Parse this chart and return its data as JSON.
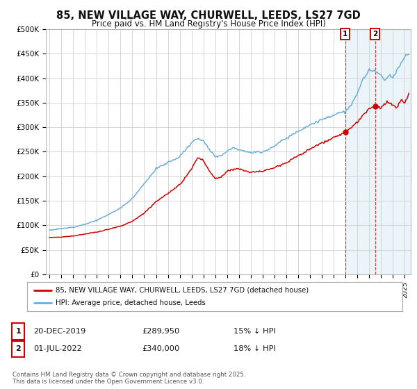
{
  "title": "85, NEW VILLAGE WAY, CHURWELL, LEEDS, LS27 7GD",
  "subtitle": "Price paid vs. HM Land Registry's House Price Index (HPI)",
  "ylabel_ticks": [
    "£0",
    "£50K",
    "£100K",
    "£150K",
    "£200K",
    "£250K",
    "£300K",
    "£350K",
    "£400K",
    "£450K",
    "£500K"
  ],
  "ytick_values": [
    0,
    50000,
    100000,
    150000,
    200000,
    250000,
    300000,
    350000,
    400000,
    450000,
    500000
  ],
  "ylim": [
    0,
    500000
  ],
  "xlim_start": 1994.7,
  "xlim_end": 2025.5,
  "hpi_color": "#6baed6",
  "price_color": "#cc0000",
  "marker1_x": 2019.97,
  "marker2_x": 2022.5,
  "legend_line1": "85, NEW VILLAGE WAY, CHURWELL, LEEDS, LS27 7GD (detached house)",
  "legend_line2": "HPI: Average price, detached house, Leeds",
  "table_row1_num": "1",
  "table_row1_date": "20-DEC-2019",
  "table_row1_price": "£289,950",
  "table_row1_hpi": "15% ↓ HPI",
  "table_row2_num": "2",
  "table_row2_date": "01-JUL-2022",
  "table_row2_price": "£340,000",
  "table_row2_hpi": "18% ↓ HPI",
  "footer": "Contains HM Land Registry data © Crown copyright and database right 2025.\nThis data is licensed under the Open Government Licence v3.0.",
  "background_color": "#ffffff",
  "grid_color": "#d0d0d0",
  "hpi_waypoints_x": [
    1995.0,
    1996.0,
    1997.0,
    1998.0,
    1999.0,
    2000.0,
    2001.0,
    2002.0,
    2003.0,
    2004.0,
    2005.0,
    2006.0,
    2007.0,
    2007.5,
    2008.0,
    2008.5,
    2009.0,
    2009.5,
    2010.0,
    2010.5,
    2011.0,
    2012.0,
    2013.0,
    2013.5,
    2014.0,
    2015.0,
    2016.0,
    2017.0,
    2018.0,
    2019.0,
    2019.5,
    2020.0,
    2020.5,
    2021.0,
    2021.5,
    2022.0,
    2022.5,
    2023.0,
    2023.3,
    2023.7,
    2024.0,
    2024.3,
    2024.7,
    2025.0,
    2025.3
  ],
  "hpi_waypoints_y": [
    90000,
    93000,
    96000,
    102000,
    110000,
    122000,
    135000,
    155000,
    185000,
    215000,
    228000,
    240000,
    268000,
    278000,
    272000,
    255000,
    240000,
    242000,
    252000,
    258000,
    255000,
    248000,
    250000,
    255000,
    262000,
    278000,
    292000,
    305000,
    315000,
    325000,
    330000,
    332000,
    345000,
    370000,
    400000,
    415000,
    415000,
    405000,
    395000,
    405000,
    400000,
    415000,
    430000,
    445000,
    450000
  ],
  "price_waypoints_x": [
    1995.0,
    1996.0,
    1997.0,
    1998.0,
    1999.0,
    2000.0,
    2001.0,
    2002.0,
    2003.0,
    2004.0,
    2005.0,
    2006.0,
    2007.0,
    2007.5,
    2008.0,
    2008.5,
    2009.0,
    2009.5,
    2010.0,
    2010.5,
    2011.0,
    2012.0,
    2013.0,
    2014.0,
    2015.0,
    2016.0,
    2017.0,
    2018.0,
    2019.0,
    2019.97,
    2020.5,
    2021.0,
    2021.5,
    2022.0,
    2022.5,
    2023.0,
    2023.5,
    2024.0,
    2024.3,
    2024.7,
    2025.0,
    2025.3
  ],
  "price_waypoints_y": [
    75000,
    76000,
    78000,
    82000,
    86000,
    92000,
    98000,
    108000,
    125000,
    148000,
    165000,
    182000,
    215000,
    238000,
    232000,
    210000,
    195000,
    198000,
    210000,
    215000,
    215000,
    208000,
    210000,
    218000,
    228000,
    242000,
    255000,
    268000,
    278000,
    289950,
    300000,
    310000,
    325000,
    338000,
    342000,
    340000,
    352000,
    345000,
    338000,
    355000,
    348000,
    368000
  ]
}
